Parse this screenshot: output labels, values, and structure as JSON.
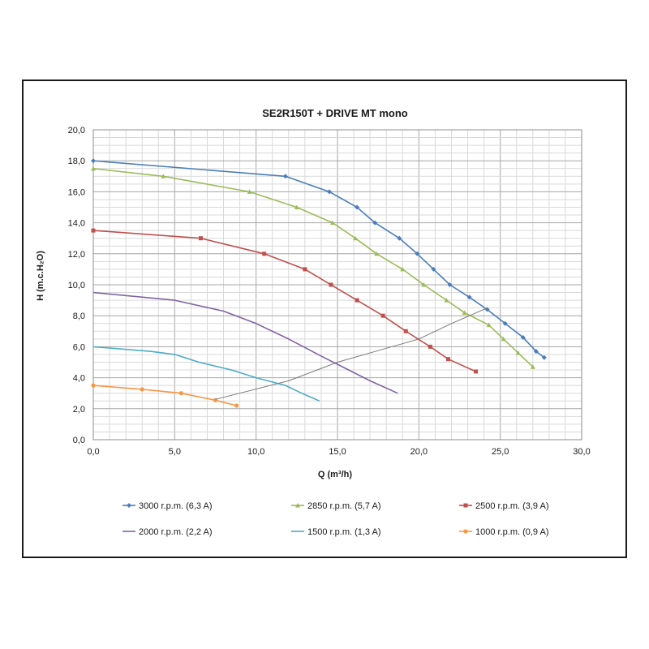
{
  "chart_data": {
    "type": "line",
    "title": "SE2R150T + DRIVE MT mono",
    "xlabel": "Q (m³/h)",
    "ylabel": "H (m.c.H₂O)",
    "xlim": [
      0,
      30
    ],
    "ylim": [
      0,
      20
    ],
    "x_ticks": [
      "0,0",
      "5,0",
      "10,0",
      "15,0",
      "20,0",
      "25,0",
      "30,0"
    ],
    "y_ticks": [
      "0,0",
      "2,0",
      "4,0",
      "6,0",
      "8,0",
      "10,0",
      "12,0",
      "14,0",
      "16,0",
      "18,0",
      "20,0"
    ],
    "grid": true,
    "legend_position": "bottom",
    "series": [
      {
        "name": "3000 r.p.m. (6,3 A)",
        "color": "#4a7ebb",
        "marker": "diamond",
        "points": [
          [
            0,
            18.0
          ],
          [
            11.8,
            17.0
          ],
          [
            14.5,
            16.0
          ],
          [
            16.2,
            15.0
          ],
          [
            17.3,
            14.0
          ],
          [
            18.8,
            13.0
          ],
          [
            19.9,
            12.0
          ],
          [
            20.9,
            11.0
          ],
          [
            21.9,
            10.0
          ],
          [
            23.1,
            9.2
          ],
          [
            24.2,
            8.4
          ],
          [
            25.3,
            7.5
          ],
          [
            26.4,
            6.6
          ],
          [
            27.2,
            5.7
          ],
          [
            27.7,
            5.3
          ]
        ]
      },
      {
        "name": "2850 r.p.m. (5,7 A)",
        "color": "#9bbb59",
        "marker": "triangle",
        "points": [
          [
            0,
            17.5
          ],
          [
            4.3,
            17.0
          ],
          [
            9.6,
            16.0
          ],
          [
            12.5,
            15.0
          ],
          [
            14.7,
            14.0
          ],
          [
            16.1,
            13.0
          ],
          [
            17.4,
            12.0
          ],
          [
            19.0,
            11.0
          ],
          [
            20.3,
            10.0
          ],
          [
            21.7,
            9.0
          ],
          [
            22.8,
            8.2
          ],
          [
            24.3,
            7.4
          ],
          [
            25.2,
            6.5
          ],
          [
            26.1,
            5.6
          ],
          [
            27.0,
            4.7
          ]
        ]
      },
      {
        "name": "2500 r.p.m. (3,9 A)",
        "color": "#c0504d",
        "marker": "square",
        "points": [
          [
            0,
            13.5
          ],
          [
            6.6,
            13.0
          ],
          [
            10.5,
            12.0
          ],
          [
            13.0,
            11.0
          ],
          [
            14.6,
            10.0
          ],
          [
            16.2,
            9.0
          ],
          [
            17.8,
            8.0
          ],
          [
            19.2,
            7.0
          ],
          [
            20.7,
            6.0
          ],
          [
            21.8,
            5.2
          ],
          [
            23.5,
            4.4
          ]
        ]
      },
      {
        "name": "2000 r.p.m. (2,2 A)",
        "color": "#8064a2",
        "marker": "none",
        "points": [
          [
            0,
            9.5
          ],
          [
            5.0,
            9.0
          ],
          [
            8.0,
            8.3
          ],
          [
            10.0,
            7.5
          ],
          [
            12.0,
            6.5
          ],
          [
            14.0,
            5.4
          ],
          [
            15.5,
            4.6
          ],
          [
            17.0,
            3.8
          ],
          [
            18.7,
            3.0
          ]
        ]
      },
      {
        "name": "1500 r.p.m. (1,3 A)",
        "color": "#4bacc6",
        "marker": "none",
        "points": [
          [
            0,
            6.0
          ],
          [
            3.5,
            5.7
          ],
          [
            5.0,
            5.5
          ],
          [
            6.5,
            5.0
          ],
          [
            8.5,
            4.5
          ],
          [
            10.0,
            4.0
          ],
          [
            11.8,
            3.5
          ],
          [
            12.8,
            3.0
          ],
          [
            13.9,
            2.5
          ]
        ]
      },
      {
        "name": "1000 r.p.m. (0,9 A)",
        "color": "#f79646",
        "marker": "circle",
        "points": [
          [
            0,
            3.5
          ],
          [
            3.0,
            3.25
          ],
          [
            5.4,
            3.0
          ],
          [
            7.5,
            2.55
          ],
          [
            8.8,
            2.2
          ]
        ]
      },
      {
        "name": "",
        "color": "#7a7a7a",
        "marker": "none",
        "points": [
          [
            7.5,
            2.6
          ],
          [
            12.0,
            3.8
          ],
          [
            15.0,
            5.0
          ],
          [
            18.0,
            5.9
          ],
          [
            20.0,
            6.5
          ],
          [
            22.0,
            7.5
          ],
          [
            24.2,
            8.5
          ]
        ]
      }
    ]
  }
}
